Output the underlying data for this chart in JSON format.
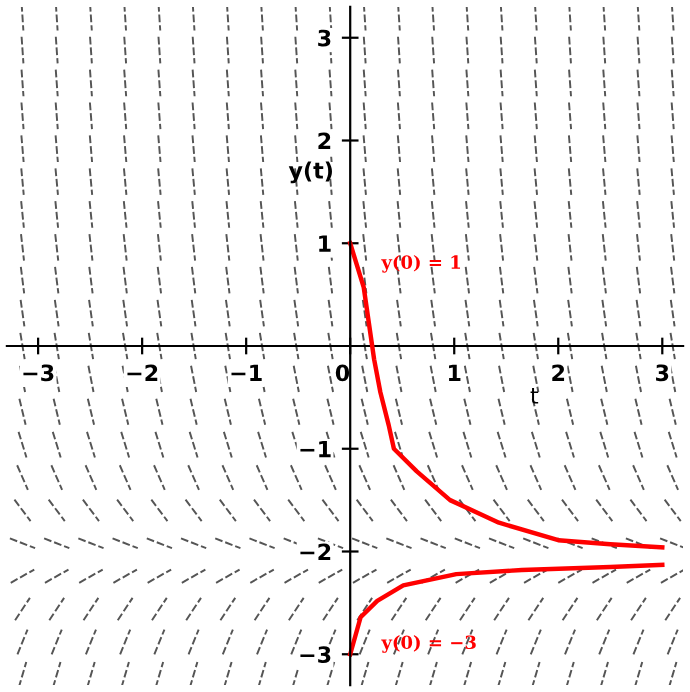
{
  "chart_data": {
    "type": "line",
    "xlabel": "t",
    "ylabel": "y(t)",
    "xlim": [
      -3.3,
      3.2
    ],
    "ylim": [
      -3.3,
      3.3
    ],
    "xticks": [
      -3,
      -2,
      -1,
      0,
      1,
      2,
      3
    ],
    "yticks": [
      -3,
      -2,
      -1,
      1,
      2,
      3
    ],
    "grid": false,
    "legend": false,
    "marker": "none",
    "line_style": "solid",
    "series": [
      {
        "name": "y(0) = 1",
        "color": "#ff0000",
        "x": [
          0,
          0.13,
          0.23,
          0.29,
          0.37,
          0.42,
          0.64,
          0.96,
          1.43,
          2,
          2.5,
          3
        ],
        "values": [
          1,
          0.57,
          -0.13,
          -0.45,
          -0.77,
          -1,
          -1.22,
          -1.5,
          -1.72,
          -1.89,
          -1.93,
          -1.96
        ]
      },
      {
        "name": "y(0) = −3",
        "color": "#ff0000",
        "x": [
          0,
          0.1,
          0.26,
          0.51,
          1.02,
          1.65,
          2.5,
          3
        ],
        "values": [
          -3,
          -2.64,
          -2.48,
          -2.33,
          -2.22,
          -2.18,
          -2.15,
          -2.13
        ]
      }
    ]
  }
}
